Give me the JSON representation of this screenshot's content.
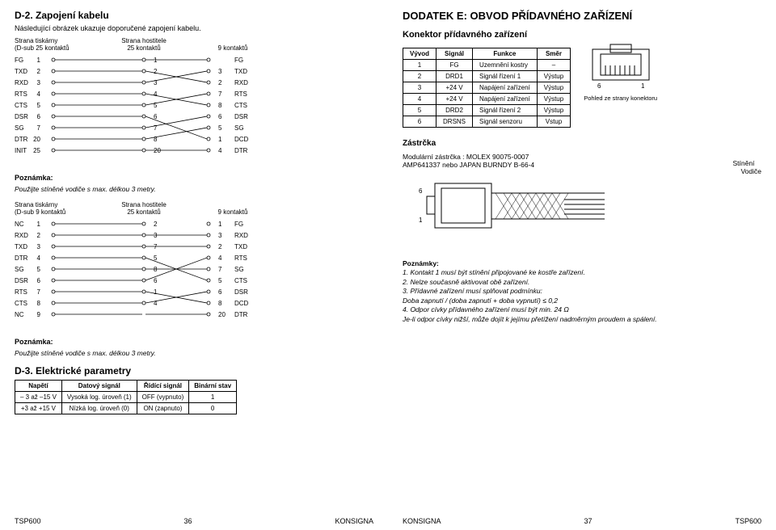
{
  "left": {
    "h2": "D-2. Zapojení kabelu",
    "sub": "Následující obrázek ukazuje doporučené zapojení kabelu.",
    "hdr": {
      "printer": "Strana tiskárny",
      "dsub25": "(D-sub 25 kontaktů",
      "dsub9": "(D-sub 9 kontaktů",
      "host": "Strana hostitele",
      "c25": "25 kontaktů",
      "c9": "9 kontaktů"
    },
    "wiring1": {
      "left": [
        {
          "lbl": "FG",
          "n": 1
        },
        {
          "lbl": "TXD",
          "n": 2
        },
        {
          "lbl": "RXD",
          "n": 3
        },
        {
          "lbl": "RTS",
          "n": 4
        },
        {
          "lbl": "CTS",
          "n": 5
        },
        {
          "lbl": "DSR",
          "n": 6
        },
        {
          "lbl": "SG",
          "n": 7
        },
        {
          "lbl": "DTR",
          "n": 20
        },
        {
          "lbl": "INIT",
          "n": 25
        }
      ],
      "mid": [
        1,
        2,
        3,
        4,
        5,
        6,
        7,
        8,
        20
      ],
      "right": [
        {
          "lbl": "FG",
          "n": null
        },
        {
          "lbl": "TXD",
          "n": 3
        },
        {
          "lbl": "RXD",
          "n": 2
        },
        {
          "lbl": "RTS",
          "n": 7
        },
        {
          "lbl": "CTS",
          "n": 8
        },
        {
          "lbl": "DSR",
          "n": 6
        },
        {
          "lbl": "SG",
          "n": 5
        },
        {
          "lbl": "DCD",
          "n": 1
        },
        {
          "lbl": "DTR",
          "n": 4
        }
      ],
      "crosses": [
        [
          0,
          0
        ],
        [
          1,
          2
        ],
        [
          2,
          1
        ],
        [
          3,
          4
        ],
        [
          4,
          3
        ],
        [
          5,
          7
        ],
        [
          6,
          5
        ],
        [
          7,
          6
        ],
        [
          8,
          8
        ]
      ]
    },
    "wiring2": {
      "left": [
        {
          "lbl": "NC",
          "n": 1
        },
        {
          "lbl": "RXD",
          "n": 2
        },
        {
          "lbl": "TXD",
          "n": 3
        },
        {
          "lbl": "DTR",
          "n": 4
        },
        {
          "lbl": "SG",
          "n": 5
        },
        {
          "lbl": "DSR",
          "n": 6
        },
        {
          "lbl": "RTS",
          "n": 7
        },
        {
          "lbl": "CTS",
          "n": 8
        },
        {
          "lbl": "NC",
          "n": 9
        }
      ],
      "mid": [
        2,
        3,
        7,
        5,
        8,
        6,
        1,
        4
      ],
      "right": [
        {
          "lbl": "FG",
          "n": 1
        },
        {
          "lbl": "RXD",
          "n": 3
        },
        {
          "lbl": "TXD",
          "n": 2
        },
        {
          "lbl": "RTS",
          "n": 4
        },
        {
          "lbl": "SG",
          "n": 7
        },
        {
          "lbl": "CTS",
          "n": 5
        },
        {
          "lbl": "DSR",
          "n": 6
        },
        {
          "lbl": "DCD",
          "n": 8
        },
        {
          "lbl": "DTR",
          "n": 20
        }
      ],
      "crosses": [
        [
          1,
          1
        ],
        [
          2,
          2
        ],
        [
          3,
          5
        ],
        [
          4,
          4
        ],
        [
          5,
          3
        ],
        [
          6,
          7
        ],
        [
          7,
          6
        ],
        [
          8,
          8
        ]
      ]
    },
    "note_label": "Poznámka:",
    "note": "Použijte stíněné vodiče s max. délkou 3 metry.",
    "d3": "D-3. Elektrické parametry",
    "elec": {
      "head": [
        "Napětí",
        "Datový signál",
        "Řídící signál",
        "Binární stav"
      ],
      "rows": [
        [
          "– 3 až –15 V",
          "Vysoká log. úroveň (1)",
          "OFF (vypnuto)",
          "1"
        ],
        [
          "+3 až +15 V",
          "Nízká log. úroveň (0)",
          "ON (zapnuto)",
          "0"
        ]
      ]
    },
    "footer": {
      "model": "TSP600",
      "page": "36",
      "brand": "KONSIGNA"
    }
  },
  "right": {
    "h1": "DODATEK E: OBVOD PŘÍDAVNÉHO ZAŘÍZENÍ",
    "h3": "Konektor přídavného zařízení",
    "sig": {
      "head": [
        "Vývod",
        "Signál",
        "Funkce",
        "Směr"
      ],
      "rows": [
        [
          "1",
          "FG",
          "Uzemnění kostry",
          "–"
        ],
        [
          "2",
          "DRD1",
          "Signál řízení 1",
          "Výstup"
        ],
        [
          "3",
          "+24 V",
          "Napájení zařízení",
          "Výstup"
        ],
        [
          "4",
          "+24 V",
          "Napájení zařízení",
          "Výstup"
        ],
        [
          "5",
          "DRD2",
          "Signál řízení 2",
          "Výstup"
        ],
        [
          "6",
          "DRSNS",
          "Signál senzoru",
          "Vstup"
        ]
      ]
    },
    "jack": {
      "l": "6",
      "r": "1",
      "caption": "Pohled ze strany konektoru"
    },
    "zast": "Zástrčka",
    "plug_caption": "Modulární zástrčka : MOLEX 90075-0007\nAMP641337 nebo JAPAN BURNDY B-66-4",
    "shield": "Stínění",
    "wires": "Vodiče",
    "pin6": "6",
    "pin1": "1",
    "notes_hd": "Poznámky:",
    "notes": [
      "1. Kontakt 1 musí být stínění připojované ke kostře zařízení.",
      "2. Nelze současně aktivovat obě zařízení.",
      "3. Přídavné zařízení musí splňovat podmínku:\n   Doba zapnutí / (doba zapnutí + doba vypnutí) ≤ 0,2",
      "4. Odpor cívky přídavného zařízení musí být min. 24 Ω\n   Je-li odpor cívky nižší, může dojít k jejímu přetížení nadměrným proudem a spálení."
    ],
    "footer": {
      "brand": "KONSIGNA",
      "page": "37",
      "model": "TSP600"
    }
  }
}
